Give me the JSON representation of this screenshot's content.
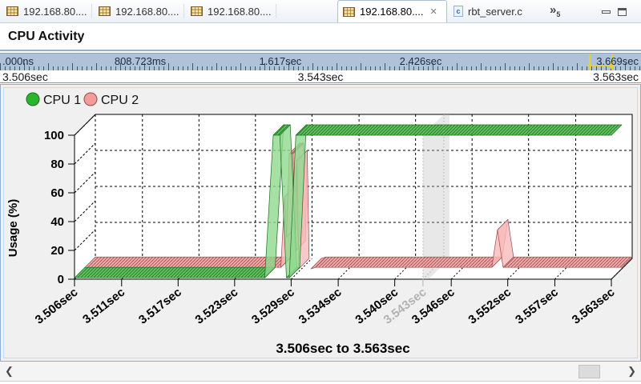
{
  "window": {
    "tabs": [
      {
        "label": "192.168.80....",
        "active": false
      },
      {
        "label": "192.168.80....",
        "active": false
      },
      {
        "label": "192.168.80....",
        "active": false
      },
      {
        "label": "192.168.80....",
        "active": true
      },
      {
        "label": "rbt_server.c",
        "active": false,
        "icon_glyph": "c"
      }
    ],
    "overflow_count": "5",
    "close_tab_glyph": "✕"
  },
  "view_header": {
    "title": "CPU Activity",
    "close_glyph": "✕"
  },
  "timeline_ruler": {
    "total_seconds": 3.669,
    "labels": [
      {
        "t": 0.0,
        "label": ".000ns"
      },
      {
        "t": 0.808723,
        "label": "808.723ms"
      },
      {
        "t": 1.617,
        "label": "1.617sec"
      },
      {
        "t": 2.426,
        "label": "2.426sec"
      },
      {
        "t": 3.669,
        "label": "3.669sec"
      }
    ],
    "selection_color": "#e6cf3f"
  },
  "range_ruler": {
    "left": "3.506sec",
    "center": "3.543sec",
    "right": "3.563sec"
  },
  "legend": {
    "items": [
      {
        "label": "CPU 1",
        "dot_color": "#2cb52c",
        "dot_edge": "#1d6b1d"
      },
      {
        "label": "CPU 2",
        "dot_color": "#f49c9c",
        "dot_edge": "#9c4848"
      }
    ]
  },
  "chart_data": {
    "type": "area",
    "projection": "3d-ribbon",
    "title": "3.506sec to 3.563sec",
    "ylabel": "Usage (%)",
    "ylim": [
      0,
      100
    ],
    "yticks": [
      0,
      20,
      40,
      60,
      80,
      100
    ],
    "xlim": [
      3.506,
      3.563
    ],
    "xticks": [
      {
        "t": 3.506,
        "label": "3.506sec"
      },
      {
        "t": 3.511,
        "label": "3.511sec"
      },
      {
        "t": 3.517,
        "label": "3.517sec"
      },
      {
        "t": 3.523,
        "label": "3.523sec"
      },
      {
        "t": 3.529,
        "label": "3.529sec"
      },
      {
        "t": 3.534,
        "label": "3.534sec"
      },
      {
        "t": 3.54,
        "label": "3.540sec"
      },
      {
        "t": 3.546,
        "label": "3.546sec"
      },
      {
        "t": 3.552,
        "label": "3.552sec"
      },
      {
        "t": 3.557,
        "label": "3.557sec"
      },
      {
        "t": 3.563,
        "label": "3.563sec"
      }
    ],
    "cursor": {
      "t": 3.543,
      "label": "3.543sec",
      "color": "#b2b2b2"
    },
    "grid": true,
    "legend_position": "top-left",
    "series": [
      {
        "name": "CPU 1",
        "fill": "#8fd98f",
        "hatch_bg": "#57c057",
        "edge": "#1d6b1d",
        "runs": [
          [
            [
              3.506,
              1
            ],
            [
              3.5262,
              1
            ],
            [
              3.5271,
              100
            ],
            [
              3.5278,
              100
            ],
            [
              3.5285,
              1
            ],
            [
              3.5288,
              1
            ],
            [
              3.5295,
              100
            ],
            [
              3.563,
              100
            ]
          ]
        ]
      },
      {
        "name": "CPU 2",
        "fill": "#f7bcbc",
        "hatch_bg": "#efa6a6",
        "edge": "#9c4848",
        "runs": [
          [
            [
              3.506,
              1
            ],
            [
              3.5268,
              1
            ],
            [
              3.5272,
              50
            ],
            [
              3.5274,
              22
            ],
            [
              3.5277,
              80
            ],
            [
              3.5281,
              80
            ],
            [
              3.5283,
              12
            ],
            [
              3.5285,
              75
            ],
            [
              3.5287,
              0
            ]
          ],
          [
            [
              3.53,
              0
            ],
            [
              3.5305,
              1
            ],
            [
              3.5492,
              1
            ],
            [
              3.5498,
              27
            ],
            [
              3.5504,
              1
            ],
            [
              3.563,
              1
            ]
          ]
        ]
      }
    ]
  }
}
